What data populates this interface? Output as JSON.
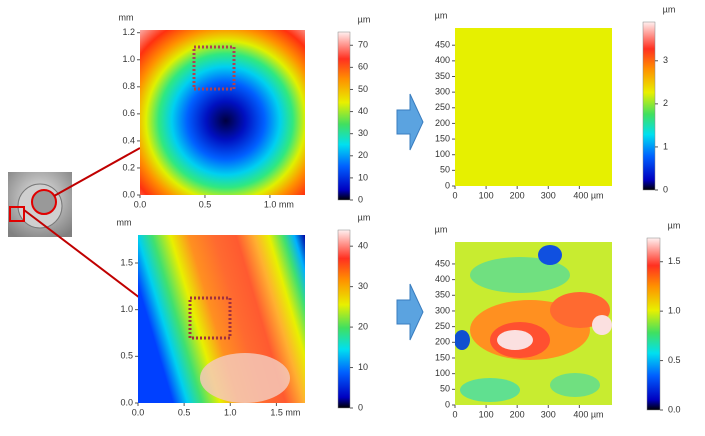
{
  "chart_data": [
    {
      "type": "heatmap",
      "y_unit": "mm",
      "colorbar_label": "µm",
      "xlim": [
        0,
        1.27
      ],
      "xticks": [
        {
          "value": 0,
          "label": "0.0"
        },
        0.5,
        {
          "value": 1,
          "label": "1.0 mm"
        }
      ],
      "ylim": [
        0,
        1.22
      ],
      "yticks": [
        {
          "value": 0,
          "label": "0.0"
        },
        0.2,
        0.4,
        0.6,
        0.8,
        {
          "value": 1,
          "label": "1.0"
        },
        1.2
      ],
      "clim": [
        0,
        76
      ],
      "cticks": [
        0,
        10,
        20,
        30,
        40,
        50,
        60,
        70
      ]
    },
    {
      "type": "heatmap",
      "y_unit": "µm",
      "colorbar_label": "µm",
      "xlim": [
        0,
        505
      ],
      "xticks": [
        0,
        100,
        200,
        300,
        {
          "value": 400,
          "label": "400 µm"
        }
      ],
      "ylim": [
        0,
        505
      ],
      "yticks": [
        0,
        50,
        100,
        150,
        200,
        250,
        300,
        350,
        400,
        450
      ],
      "clim": [
        0,
        3.9
      ],
      "cticks": [
        0,
        1,
        2,
        3
      ]
    },
    {
      "type": "heatmap",
      "y_unit": "mm",
      "colorbar_label": "µm",
      "xlim": [
        0,
        1.81
      ],
      "xticks": [
        {
          "value": 0,
          "label": "0.0"
        },
        0.5,
        {
          "value": 1,
          "label": "1.0"
        },
        {
          "value": 1.5,
          "label": "1.5 mm"
        }
      ],
      "ylim": [
        0,
        1.8
      ],
      "yticks": [
        {
          "value": 0,
          "label": "0.0"
        },
        0.5,
        {
          "value": 1,
          "label": "1.0"
        },
        1.5
      ],
      "clim": [
        0,
        44
      ],
      "cticks": [
        0,
        10,
        20,
        30,
        40
      ]
    },
    {
      "type": "heatmap",
      "y_unit": "µm",
      "colorbar_label": "µm",
      "xlim": [
        0,
        505
      ],
      "xticks": [
        0,
        100,
        200,
        300,
        {
          "value": 400,
          "label": "400 µm"
        }
      ],
      "ylim": [
        0,
        520
      ],
      "yticks": [
        0,
        50,
        100,
        150,
        200,
        250,
        300,
        350,
        400,
        450
      ],
      "clim": [
        0,
        1.74
      ],
      "cticks": [
        {
          "value": 0,
          "label": "0.0"
        },
        0.5,
        {
          "value": 1,
          "label": "1.0"
        },
        1.5
      ]
    }
  ]
}
